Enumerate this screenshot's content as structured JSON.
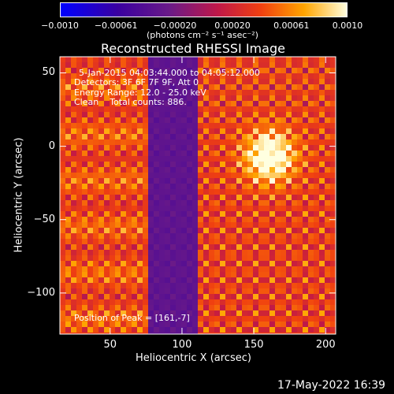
{
  "chart_data": {
    "type": "heatmap",
    "title": "Reconstructed RHESSI Image",
    "xlabel": "Heliocentric X (arcsec)",
    "ylabel": "Heliocentric Y (arcsec)",
    "xlim": [
      15,
      207
    ],
    "ylim": [
      -128,
      61
    ],
    "x_ticks": [
      50,
      100,
      150,
      200
    ],
    "y_ticks": [
      50,
      0,
      -50,
      -100
    ],
    "colorbar": {
      "min": -0.001,
      "max": 0.001,
      "tick_values": [
        -0.001,
        -0.00061,
        -0.0002,
        0.0002,
        0.00061,
        0.001
      ],
      "tick_labels": [
        "-0.0010",
        "-0.00061",
        "-0.00020",
        "0.00020",
        "0.00061",
        "0.0010"
      ],
      "unit_label": "(photons cm⁻² s⁻¹ asec⁻²)"
    },
    "annotations": {
      "time_range": "5-Jan-2015 04:03:44.000 to 04:05:12.000",
      "detectors": "Detectors: 3F 6F 7F 9F, Att 0",
      "energy_range": "Energy Range: 12.0 - 25.0 keV",
      "clean_counts": "Clean    Total counts: 886.",
      "peak_position": "Position of Peak = [161,-7]"
    },
    "peak": {
      "x": 161,
      "y": -7
    },
    "colors": {
      "background": "#000000",
      "colormap": [
        "#0000ff",
        "#4b0082",
        "#8e1a8e",
        "#e02020",
        "#ff8c00",
        "#ffd700",
        "#ffffe0"
      ]
    }
  },
  "footer": {
    "timestamp": "17-May-2022 16:39"
  }
}
